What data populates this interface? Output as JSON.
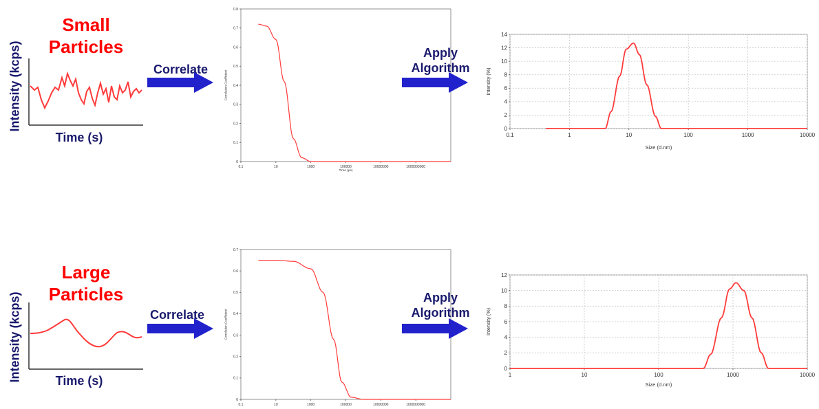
{
  "rows": [
    {
      "id": "small",
      "title_line1": "Small",
      "title_line2": "Particles",
      "ylabel": "Intensity (kcps)",
      "xlabel": "Time (s)",
      "step1": "Correlate",
      "step2_line1": "Apply",
      "step2_line2": "Algorithm"
    },
    {
      "id": "large",
      "title_line1": "Large",
      "title_line2": "Particles",
      "ylabel": "Intensity (kcps)",
      "xlabel": "Time (s)",
      "step1": "Correlate",
      "step2_line1": "Apply",
      "step2_line2": "Algorithm"
    }
  ],
  "colors": {
    "curve": "#ff3b3b",
    "arrow": "#2222cc",
    "text": "#1a1a6e",
    "title": "#ff0000"
  },
  "chart_data": [
    {
      "id": "small-correlogram",
      "type": "line",
      "xlabel": "Time (µs)",
      "ylabel": "Correlation Coefficient",
      "xscale": "log",
      "xlim": [
        0.1,
        100000000000
      ],
      "ylim": [
        0,
        0.8
      ],
      "xticks": [
        "0.1",
        "10",
        "1000",
        "100000",
        "10000000",
        "1000000000"
      ],
      "yticks": [
        "0",
        "0.1",
        "0.2",
        "0.3",
        "0.4",
        "0.5",
        "0.6",
        "0.7",
        "0.8"
      ],
      "series": [
        {
          "x": [
            1,
            3,
            10,
            30,
            100,
            300,
            1000,
            100000000000
          ],
          "y": [
            0.72,
            0.71,
            0.64,
            0.42,
            0.12,
            0.02,
            0.0,
            0.0
          ]
        }
      ]
    },
    {
      "id": "small-distribution",
      "type": "line",
      "xlabel": "Size (d.nm)",
      "ylabel": "Intensity (%)",
      "xscale": "log",
      "xlim": [
        0.1,
        10000
      ],
      "ylim": [
        0,
        14
      ],
      "xticks": [
        "0.1",
        "1",
        "10",
        "100",
        "1000",
        "10000"
      ],
      "yticks": [
        "0",
        "2",
        "4",
        "6",
        "8",
        "10",
        "12",
        "14"
      ],
      "series": [
        {
          "x": [
            0.4,
            4,
            5,
            7,
            9,
            12,
            15,
            20,
            28,
            35,
            10000
          ],
          "y": [
            0,
            0,
            2.5,
            7.8,
            11.8,
            12.7,
            11.0,
            6.5,
            1.8,
            0,
            0
          ]
        }
      ]
    },
    {
      "id": "large-correlogram",
      "type": "line",
      "xlabel": "",
      "ylabel": "Correlation Coefficient",
      "xscale": "log",
      "xlim": [
        0.1,
        100000000000
      ],
      "ylim": [
        0,
        0.7
      ],
      "xticks": [
        "0.1",
        "10",
        "1000",
        "100000",
        "10000000",
        "1000000000"
      ],
      "yticks": [
        "0",
        "0.1",
        "0.2",
        "0.3",
        "0.4",
        "0.5",
        "0.6",
        "0.7"
      ],
      "series": [
        {
          "x": [
            1,
            10,
            100,
            1000,
            5000,
            20000,
            60000,
            200000,
            1000000,
            100000000000
          ],
          "y": [
            0.65,
            0.65,
            0.645,
            0.61,
            0.5,
            0.28,
            0.08,
            0.01,
            0.0,
            0.0
          ]
        }
      ]
    },
    {
      "id": "large-distribution",
      "type": "line",
      "xlabel": "Size (d.nm)",
      "ylabel": "Intensity (%)",
      "xscale": "log",
      "xlim": [
        1,
        10000
      ],
      "ylim": [
        0,
        12
      ],
      "xticks": [
        "1",
        "10",
        "100",
        "1000",
        "10000"
      ],
      "yticks": [
        "0",
        "2",
        "4",
        "6",
        "8",
        "10",
        "12"
      ],
      "series": [
        {
          "x": [
            1,
            400,
            500,
            700,
            900,
            1100,
            1400,
            1800,
            2400,
            3000,
            10000
          ],
          "y": [
            0,
            0,
            1.8,
            6.5,
            10.2,
            11.0,
            10.0,
            6.5,
            2.0,
            0,
            0
          ]
        }
      ]
    }
  ]
}
